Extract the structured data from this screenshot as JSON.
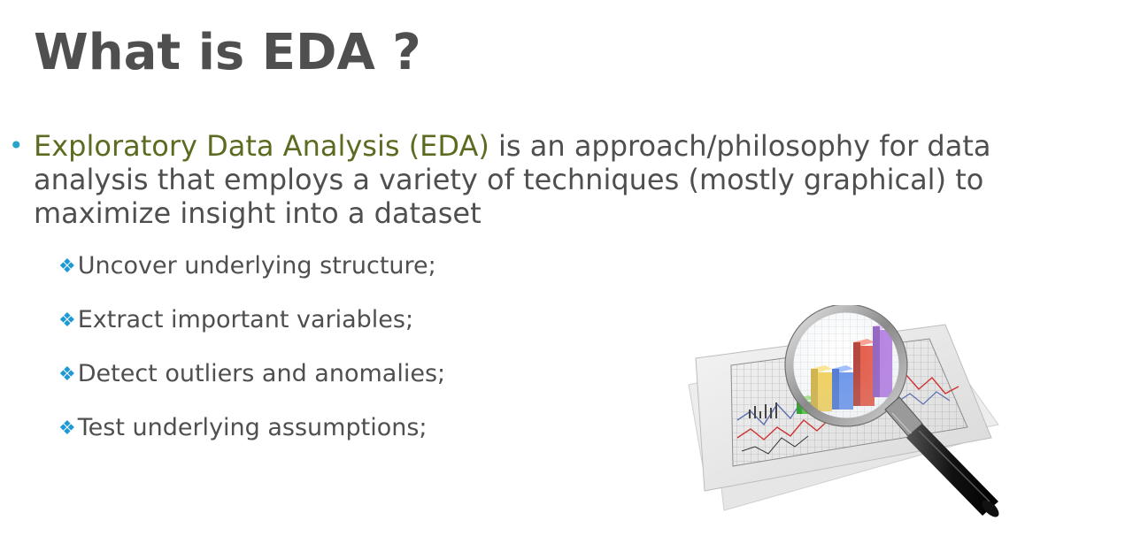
{
  "slide": {
    "title": "What is EDA ?",
    "bullet": {
      "highlight": "Exploratory Data Analysis (EDA)",
      "rest": " is an approach/philosophy for data analysis that employs a variety of techniques (mostly graphical) to maximize insight into a dataset"
    },
    "sub_items": [
      "Uncover underlying structure;",
      "Extract important variables;",
      "Detect outliers and anomalies;",
      "Test underlying assumptions;"
    ],
    "bullet_symbol": "•",
    "sub_bullet_symbol": "❖",
    "colors": {
      "title": "#4f4f4f",
      "highlight": "#5b6b1f",
      "bullet": "#29a3c9",
      "sub_bullet": "#1d9ad6"
    },
    "illustration_icon": "magnifier-over-charts-icon"
  }
}
